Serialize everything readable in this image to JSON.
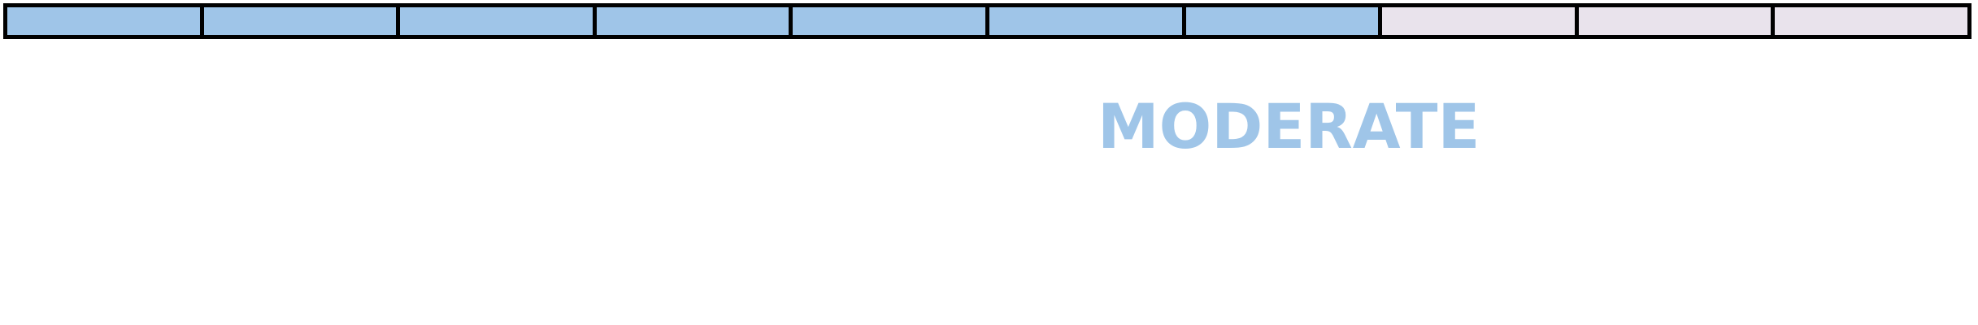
{
  "meter": {
    "total_segments": 10,
    "filled_segments": 7,
    "level_fraction": 0.7,
    "filled_color": "#9fc5e8",
    "empty_color": "#e9e3ec",
    "border_color": "#000000"
  },
  "label": {
    "text": "MODERATE",
    "color": "#9fc5e8"
  }
}
